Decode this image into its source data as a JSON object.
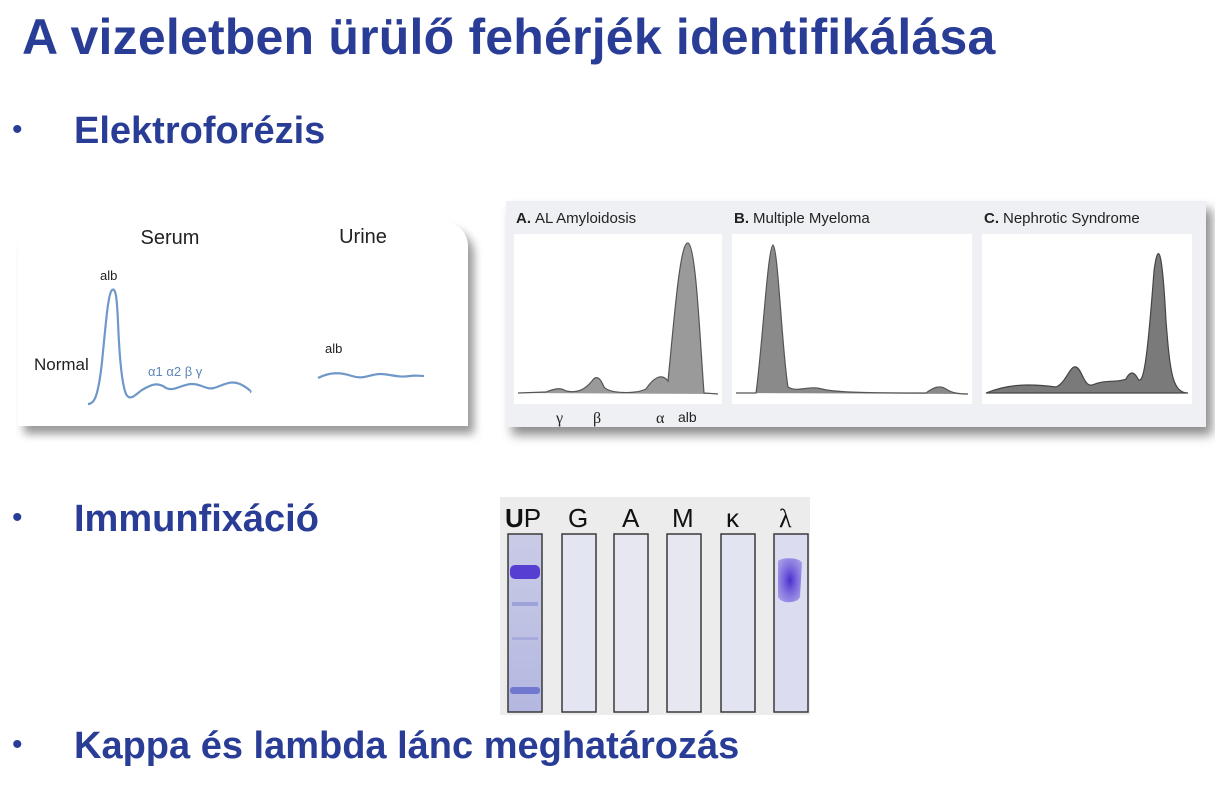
{
  "slide": {
    "title": "A vizeletben ürülő fehérjék identifikálása",
    "bullets": [
      {
        "marker": "•",
        "text": "Elektroforézis"
      },
      {
        "marker": "•",
        "text": "Immunfixáció"
      },
      {
        "marker": "•",
        "text": "Kappa és lambda lánc meghatározás"
      }
    ]
  },
  "serum_urine_figure": {
    "serum_label": "Serum",
    "urine_label": "Urine",
    "row_label": "Normal",
    "serum_alb_label": "alb",
    "serum_fraction_labels": "α1 α2 β γ",
    "urine_alb_label": "alb"
  },
  "spep_figure": {
    "panels": [
      {
        "id": "A.",
        "title": "AL Amyloidosis"
      },
      {
        "id": "B.",
        "title": "Multiple Myeloma"
      },
      {
        "id": "C.",
        "title": "Nephrotic Syndrome"
      }
    ],
    "axis_labels": {
      "gamma": "γ",
      "beta": "β",
      "alpha": "α",
      "alb": "alb"
    }
  },
  "immunofixation_figure": {
    "lane_labels": [
      {
        "bold": "U",
        "rest": "P"
      },
      {
        "bold": "",
        "rest": "G"
      },
      {
        "bold": "",
        "rest": "A"
      },
      {
        "bold": "",
        "rest": "M"
      },
      {
        "bold": "",
        "rest": "ĸ"
      },
      {
        "bold": "",
        "rest": "λ"
      }
    ],
    "colors": {
      "stain": "#4a2fd0",
      "lane_border": "#3a3a3a"
    }
  }
}
